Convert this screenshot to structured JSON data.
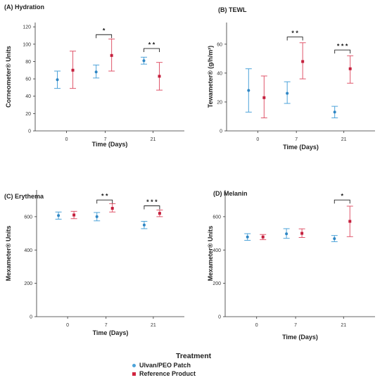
{
  "colors": {
    "ulvan": "#4da3d9",
    "ulvan_dot": "#2f86c4",
    "ref": "#e0566b",
    "ref_dot": "#c4203d",
    "axis": "#333333"
  },
  "legend": {
    "title": "Treatment",
    "items": [
      {
        "label": "Ulvan/PEO Patch",
        "color": "#4da3d9"
      },
      {
        "label": "Reference Product",
        "color": "#d1243f"
      }
    ]
  },
  "chart_data": [
    {
      "type": "scatter",
      "panel_label": "(A) Hydration",
      "xlabel": "Time (Days)",
      "ylabel": "Corneometer® Units",
      "categories": [
        "0",
        "7",
        "21"
      ],
      "ylim": [
        0,
        125
      ],
      "yticks": [
        0,
        20,
        40,
        60,
        80,
        100,
        120
      ],
      "series": [
        {
          "name": "Ulvan/PEO Patch",
          "color": "#4da3d9",
          "values": [
            59,
            68,
            81
          ],
          "lower": [
            49,
            61,
            77
          ],
          "upper": [
            69,
            76,
            85
          ]
        },
        {
          "name": "Reference Product",
          "color": "#d1243f",
          "values": [
            70,
            87,
            63
          ],
          "lower": [
            49,
            69,
            47
          ],
          "upper": [
            92,
            106,
            79
          ]
        }
      ],
      "significance": [
        {
          "category": "7",
          "label": "*",
          "y": 111
        },
        {
          "category": "21",
          "label": "* *",
          "y": 95
        }
      ]
    },
    {
      "type": "scatter",
      "panel_label": "(B) TEWL",
      "xlabel": "Time (Days)",
      "ylabel": "Tewameter® (g/h/m²)",
      "categories": [
        "0",
        "7",
        "21"
      ],
      "ylim": [
        0,
        75
      ],
      "yticks": [
        0,
        20,
        40,
        60
      ],
      "series": [
        {
          "name": "Ulvan/PEO Patch",
          "color": "#4da3d9",
          "values": [
            28,
            26,
            13
          ],
          "lower": [
            13,
            19,
            9
          ],
          "upper": [
            43,
            34,
            17
          ]
        },
        {
          "name": "Reference Product",
          "color": "#d1243f",
          "values": [
            23,
            48,
            43
          ],
          "lower": [
            9,
            36,
            33
          ],
          "upper": [
            38,
            61,
            52
          ]
        }
      ],
      "significance": [
        {
          "category": "7",
          "label": "* *",
          "y": 65
        },
        {
          "category": "21",
          "label": "* * *",
          "y": 56
        }
      ]
    },
    {
      "type": "scatter",
      "panel_label": "(C) Erythema",
      "xlabel": "Time (Days)",
      "ylabel": "Mexameter® Units",
      "categories": [
        "0",
        "7",
        "21"
      ],
      "ylim": [
        0,
        760
      ],
      "yticks": [
        0,
        200,
        400,
        600
      ],
      "series": [
        {
          "name": "Ulvan/PEO Patch",
          "color": "#4da3d9",
          "values": [
            607,
            600,
            550
          ],
          "lower": [
            585,
            575,
            528
          ],
          "upper": [
            628,
            625,
            572
          ]
        },
        {
          "name": "Reference Product",
          "color": "#d1243f",
          "values": [
            610,
            650,
            620
          ],
          "lower": [
            588,
            628,
            600
          ],
          "upper": [
            632,
            678,
            640
          ]
        }
      ],
      "significance": [
        {
          "category": "7",
          "label": "* *",
          "y": 700
        },
        {
          "category": "21",
          "label": "* * *",
          "y": 665
        }
      ]
    },
    {
      "type": "scatter",
      "panel_label": "(D) Melanin",
      "xlabel": "Time (Days)",
      "ylabel": "Mexameter® Units",
      "categories": [
        "0",
        "7",
        "21"
      ],
      "ylim": [
        0,
        760
      ],
      "yticks": [
        0,
        200,
        400,
        600
      ],
      "series": [
        {
          "name": "Ulvan/PEO Patch",
          "color": "#4da3d9",
          "values": [
            478,
            497,
            468
          ],
          "lower": [
            458,
            470,
            450
          ],
          "upper": [
            498,
            528,
            487
          ]
        },
        {
          "name": "Reference Product",
          "color": "#d1243f",
          "values": [
            478,
            500,
            572
          ],
          "lower": [
            462,
            475,
            480
          ],
          "upper": [
            493,
            527,
            663
          ]
        }
      ],
      "significance": [
        {
          "category": "21",
          "label": "*",
          "y": 700
        }
      ]
    }
  ]
}
